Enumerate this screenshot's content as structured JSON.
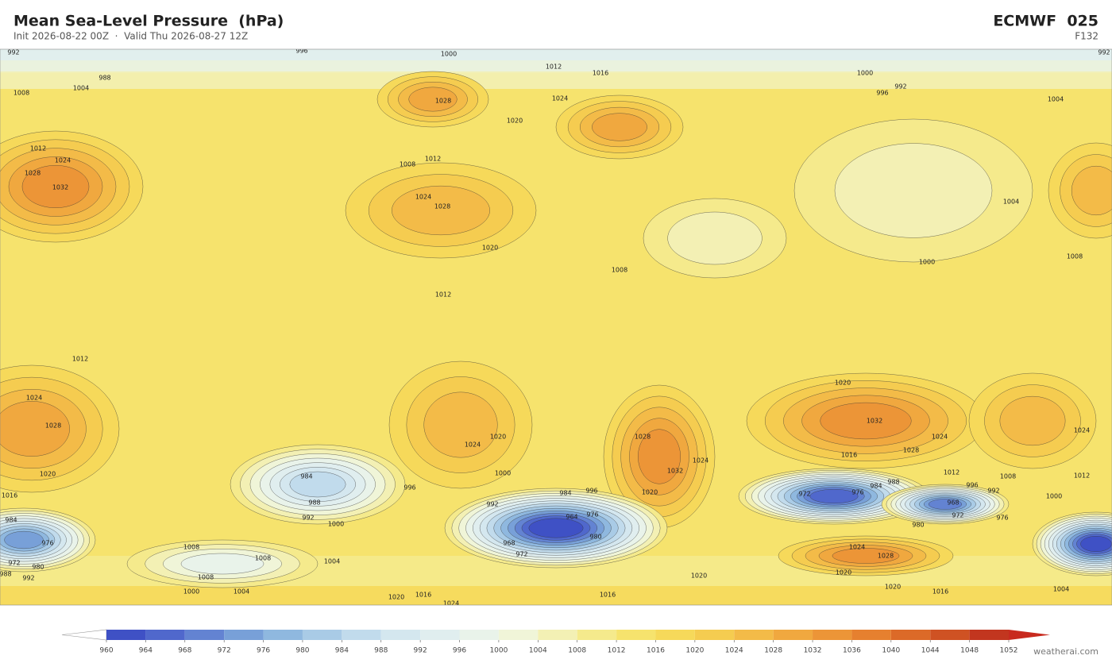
{
  "header": {
    "title": "Mean Sea-Level Pressure  (hPa)",
    "subtitle": "Init 2026-08-22 00Z  ·  Valid Thu 2026-08-27 12Z",
    "model": "ECMWF  025",
    "forecast_hour": "F132"
  },
  "map": {
    "contour_labels": [
      992,
      996,
      1000,
      992,
      988,
      1004,
      1008,
      1012,
      1016,
      1000,
      992,
      996,
      1024,
      1028,
      1020,
      1008,
      1012,
      1028,
      1024,
      1032,
      1012,
      1024,
      1028,
      1020,
      1012,
      1004,
      1004,
      1000,
      1008,
      1008,
      1012,
      1024,
      1028,
      1020,
      1016,
      1024,
      1020,
      1000,
      992,
      984,
      988,
      992,
      996,
      1000,
      1028,
      1032,
      1024,
      1020,
      984,
      996,
      964,
      976,
      980,
      968,
      972,
      1020,
      1032,
      1028,
      1016,
      1024,
      1012,
      1008,
      996,
      992,
      988,
      984,
      976,
      972,
      968,
      972,
      976,
      980,
      1000,
      984,
      976,
      980,
      972,
      988,
      992,
      1008,
      1008,
      1004,
      1008,
      1004,
      1000,
      1016,
      1020,
      1024,
      1016,
      1020,
      1024,
      1028,
      1020,
      1020,
      1016,
      1004,
      1012,
      1024
    ]
  },
  "colorbar": {
    "ticks": [
      960,
      964,
      968,
      972,
      976,
      980,
      984,
      988,
      992,
      996,
      1000,
      1004,
      1008,
      1012,
      1016,
      1020,
      1024,
      1028,
      1032,
      1036,
      1040,
      1044,
      1048,
      1052
    ],
    "colors": [
      "#3f51c5",
      "#5068cc",
      "#6383d2",
      "#78a0d8",
      "#8fb8df",
      "#a9cbe6",
      "#c1dbec",
      "#d4e7ef",
      "#e0eeef",
      "#e9f3ea",
      "#f0f5d8",
      "#f3f0b4",
      "#f5ea8c",
      "#f6e36d",
      "#f6d95a",
      "#f5cc50",
      "#f3bb48",
      "#f0a83f",
      "#ec9537",
      "#e6802f",
      "#dc6a28",
      "#cf5223",
      "#c2361f"
    ],
    "under_color": "#ffffff",
    "over_color": "#c82a1e"
  },
  "footer": {
    "watermark": "weatherai.com"
  }
}
